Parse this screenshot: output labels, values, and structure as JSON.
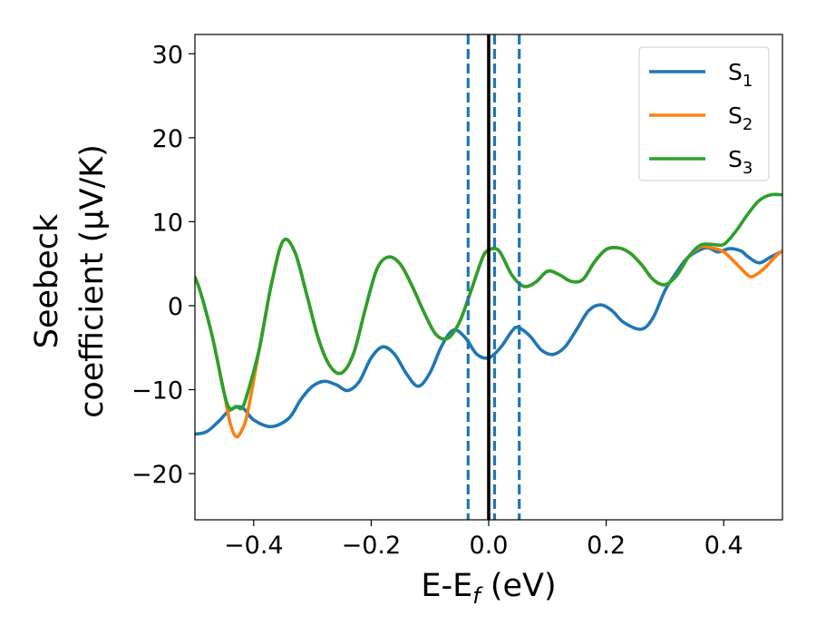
{
  "chart_data": {
    "type": "line",
    "xlabel": {
      "main": "E-E",
      "sub": "f",
      "unit": " (eV)"
    },
    "ylabel": {
      "line1": "Seebeck",
      "line2": "coefficient  (μV/K)"
    },
    "xlim": [
      -0.5,
      0.5
    ],
    "ylim": [
      -25.5,
      32.3
    ],
    "x_ticks": [
      -0.4,
      -0.2,
      0.0,
      0.2,
      0.4
    ],
    "x_tick_labels": [
      "−0.4",
      "−0.2",
      "0.0",
      "0.2",
      "0.4"
    ],
    "y_ticks": [
      -20,
      -10,
      0,
      10,
      20,
      30
    ],
    "y_tick_labels": [
      "−20",
      "−10",
      "0",
      "10",
      "20",
      "30"
    ],
    "grid": false,
    "legend_position": "top-right",
    "vlines": [
      {
        "x": 0.0,
        "style": "solid",
        "color": "#000000"
      },
      {
        "x": -0.035,
        "style": "dashed",
        "color": "#1f77b4"
      },
      {
        "x": 0.01,
        "style": "dashed",
        "color": "#1f77b4"
      },
      {
        "x": 0.052,
        "style": "dashed",
        "color": "#1f77b4"
      }
    ],
    "series": [
      {
        "name": "S",
        "sub": "1",
        "color": "#1f77b4",
        "points": [
          [
            -0.5,
            -15.3
          ],
          [
            -0.48,
            -15.0
          ],
          [
            -0.46,
            -13.8
          ],
          [
            -0.44,
            -12.4
          ],
          [
            -0.42,
            -12.1
          ],
          [
            -0.4,
            -13.6
          ],
          [
            -0.37,
            -14.4
          ],
          [
            -0.34,
            -13.4
          ],
          [
            -0.32,
            -11.2
          ],
          [
            -0.3,
            -9.6
          ],
          [
            -0.28,
            -9.0
          ],
          [
            -0.26,
            -9.4
          ],
          [
            -0.24,
            -10.1
          ],
          [
            -0.22,
            -9.0
          ],
          [
            -0.2,
            -6.2
          ],
          [
            -0.18,
            -4.9
          ],
          [
            -0.16,
            -5.8
          ],
          [
            -0.14,
            -8.1
          ],
          [
            -0.12,
            -9.6
          ],
          [
            -0.1,
            -8.0
          ],
          [
            -0.08,
            -4.8
          ],
          [
            -0.06,
            -2.9
          ],
          [
            -0.04,
            -3.8
          ],
          [
            -0.02,
            -5.8
          ],
          [
            0.0,
            -6.2
          ],
          [
            0.02,
            -5.0
          ],
          [
            0.04,
            -3.0
          ],
          [
            0.05,
            -2.6
          ],
          [
            0.07,
            -3.6
          ],
          [
            0.09,
            -5.3
          ],
          [
            0.11,
            -5.8
          ],
          [
            0.13,
            -4.9
          ],
          [
            0.15,
            -2.8
          ],
          [
            0.17,
            -0.6
          ],
          [
            0.19,
            0.1
          ],
          [
            0.21,
            -0.6
          ],
          [
            0.23,
            -2.0
          ],
          [
            0.26,
            -2.8
          ],
          [
            0.28,
            -1.4
          ],
          [
            0.3,
            1.8
          ],
          [
            0.32,
            4.0
          ],
          [
            0.34,
            5.8
          ],
          [
            0.37,
            6.9
          ],
          [
            0.39,
            6.4
          ],
          [
            0.41,
            6.8
          ],
          [
            0.43,
            6.5
          ],
          [
            0.44,
            5.9
          ],
          [
            0.46,
            5.1
          ],
          [
            0.48,
            5.8
          ],
          [
            0.5,
            6.5
          ]
        ]
      },
      {
        "name": "S",
        "sub": "2",
        "color": "#ff7f0e",
        "points": [
          [
            -0.5,
            3.4
          ],
          [
            -0.49,
            1.5
          ],
          [
            -0.47,
            -3.8
          ],
          [
            -0.45,
            -10.5
          ],
          [
            -0.44,
            -14.0
          ],
          [
            -0.43,
            -15.6
          ],
          [
            -0.42,
            -14.8
          ],
          [
            -0.41,
            -12.6
          ],
          [
            -0.39,
            -5.0
          ],
          [
            -0.37,
            2.5
          ],
          [
            -0.35,
            7.7
          ],
          [
            -0.33,
            6.4
          ],
          [
            -0.31,
            1.4
          ],
          [
            -0.29,
            -3.9
          ],
          [
            -0.27,
            -7.2
          ],
          [
            -0.25,
            -8.0
          ],
          [
            -0.23,
            -5.7
          ],
          [
            -0.21,
            -0.4
          ],
          [
            -0.19,
            4.4
          ],
          [
            -0.17,
            5.8
          ],
          [
            -0.15,
            4.9
          ],
          [
            -0.13,
            2.3
          ],
          [
            -0.11,
            -0.8
          ],
          [
            -0.09,
            -3.4
          ],
          [
            -0.07,
            -3.9
          ],
          [
            -0.05,
            -2.0
          ],
          [
            -0.03,
            1.8
          ],
          [
            -0.01,
            5.8
          ],
          [
            0.0,
            6.6
          ],
          [
            0.01,
            6.8
          ],
          [
            0.02,
            6.3
          ],
          [
            0.04,
            3.6
          ],
          [
            0.06,
            2.3
          ],
          [
            0.08,
            2.8
          ],
          [
            0.1,
            4.1
          ],
          [
            0.12,
            3.7
          ],
          [
            0.14,
            2.9
          ],
          [
            0.16,
            3.1
          ],
          [
            0.18,
            5.2
          ],
          [
            0.2,
            6.7
          ],
          [
            0.22,
            6.9
          ],
          [
            0.24,
            6.3
          ],
          [
            0.26,
            4.9
          ],
          [
            0.28,
            3.1
          ],
          [
            0.3,
            2.5
          ],
          [
            0.32,
            3.6
          ],
          [
            0.34,
            5.8
          ],
          [
            0.36,
            7.0
          ],
          [
            0.38,
            6.9
          ],
          [
            0.4,
            6.4
          ],
          [
            0.42,
            5.1
          ],
          [
            0.44,
            3.7
          ],
          [
            0.45,
            3.5
          ],
          [
            0.47,
            4.5
          ],
          [
            0.49,
            6.0
          ],
          [
            0.5,
            6.5
          ]
        ]
      },
      {
        "name": "S",
        "sub": "3",
        "color": "#2ca02c",
        "points": [
          [
            -0.5,
            3.4
          ],
          [
            -0.49,
            1.5
          ],
          [
            -0.47,
            -3.8
          ],
          [
            -0.45,
            -10.5
          ],
          [
            -0.44,
            -12.3
          ],
          [
            -0.43,
            -12.0
          ],
          [
            -0.42,
            -12.2
          ],
          [
            -0.41,
            -10.3
          ],
          [
            -0.39,
            -5.0
          ],
          [
            -0.37,
            2.5
          ],
          [
            -0.35,
            7.7
          ],
          [
            -0.33,
            6.4
          ],
          [
            -0.31,
            1.4
          ],
          [
            -0.29,
            -3.9
          ],
          [
            -0.27,
            -7.2
          ],
          [
            -0.25,
            -8.0
          ],
          [
            -0.23,
            -5.7
          ],
          [
            -0.21,
            -0.4
          ],
          [
            -0.19,
            4.4
          ],
          [
            -0.17,
            5.8
          ],
          [
            -0.15,
            4.9
          ],
          [
            -0.13,
            2.3
          ],
          [
            -0.11,
            -0.8
          ],
          [
            -0.09,
            -3.4
          ],
          [
            -0.07,
            -3.9
          ],
          [
            -0.05,
            -2.0
          ],
          [
            -0.03,
            1.8
          ],
          [
            -0.01,
            5.8
          ],
          [
            0.0,
            6.6
          ],
          [
            0.01,
            6.8
          ],
          [
            0.02,
            6.3
          ],
          [
            0.04,
            3.6
          ],
          [
            0.06,
            2.3
          ],
          [
            0.08,
            2.8
          ],
          [
            0.1,
            4.1
          ],
          [
            0.12,
            3.7
          ],
          [
            0.14,
            2.9
          ],
          [
            0.16,
            3.1
          ],
          [
            0.18,
            5.2
          ],
          [
            0.2,
            6.7
          ],
          [
            0.22,
            6.9
          ],
          [
            0.24,
            6.3
          ],
          [
            0.26,
            4.9
          ],
          [
            0.28,
            3.1
          ],
          [
            0.3,
            2.5
          ],
          [
            0.32,
            3.6
          ],
          [
            0.34,
            5.8
          ],
          [
            0.36,
            7.2
          ],
          [
            0.38,
            7.3
          ],
          [
            0.4,
            7.3
          ],
          [
            0.42,
            8.8
          ],
          [
            0.44,
            10.8
          ],
          [
            0.46,
            12.5
          ],
          [
            0.48,
            13.2
          ],
          [
            0.5,
            13.2
          ]
        ]
      }
    ]
  }
}
